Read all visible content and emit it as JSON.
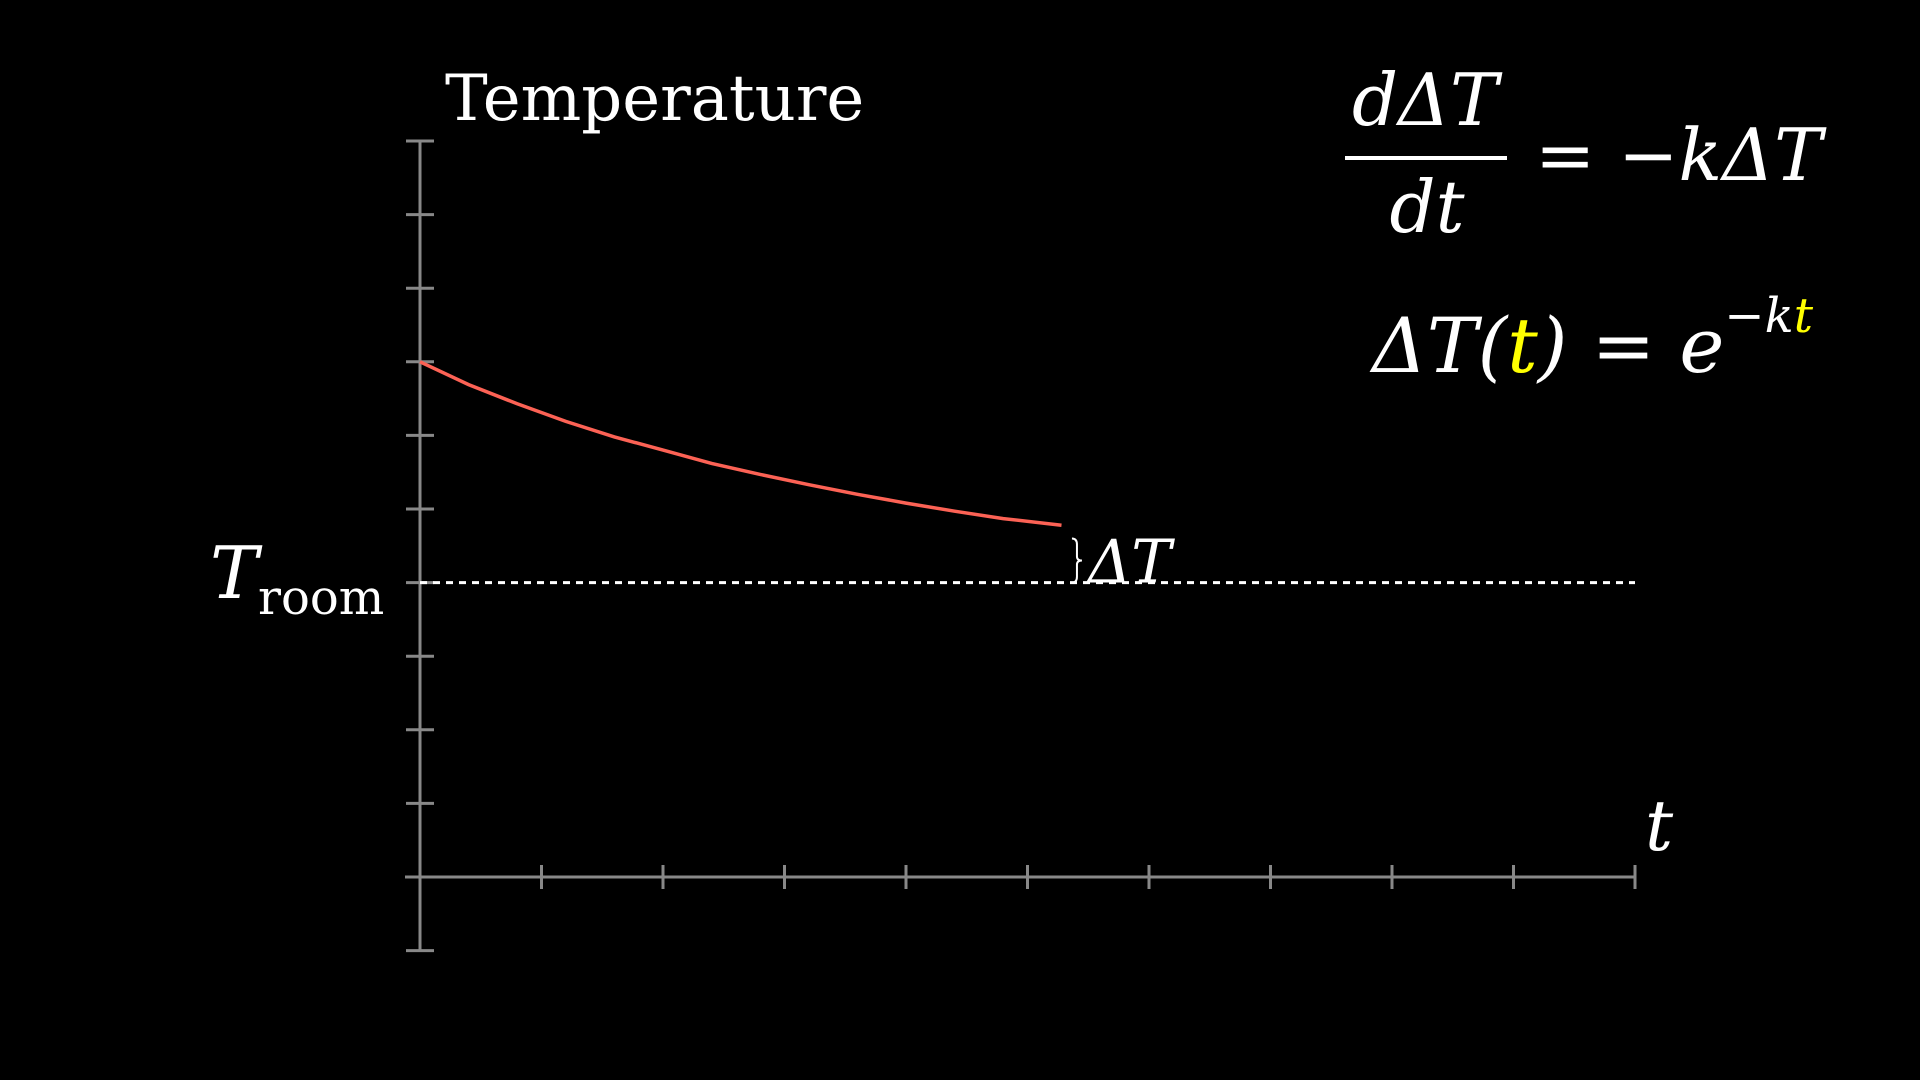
{
  "chart_data": {
    "type": "line",
    "title": "Temperature",
    "xlabel": "t",
    "ylabel": "Temperature",
    "x_ticks": [
      1,
      2,
      3,
      4,
      5,
      6,
      7,
      8,
      9,
      10
    ],
    "y_ticks": [
      -1,
      1,
      2,
      3,
      4,
      5,
      6,
      7,
      8,
      9,
      10
    ],
    "xlim": [
      0,
      10
    ],
    "ylim": [
      -1,
      10
    ],
    "grid": false,
    "reference_line": {
      "y": 4,
      "label_main": "T",
      "label_sub": "room",
      "style": "dotted"
    },
    "annotation": {
      "text": "ΔT",
      "x": 5.3,
      "y_top": 4.6,
      "y_bottom": 4
    },
    "series": [
      {
        "color": "#fc6255",
        "x": [
          0,
          0.4,
          0.8,
          1.2,
          1.6,
          2.0,
          2.4,
          2.8,
          3.2,
          3.6,
          4.0,
          4.4,
          4.8,
          5.28
        ],
        "y": [
          7,
          6.69,
          6.43,
          6.19,
          5.98,
          5.8,
          5.62,
          5.47,
          5.33,
          5.2,
          5.08,
          4.97,
          4.87,
          4.78
        ]
      }
    ]
  },
  "equations": {
    "ode_numerator": "dΔT",
    "ode_denominator": "dt",
    "ode_rhs": "= −kΔT",
    "solution_lhs": "ΔT(",
    "solution_t": "t",
    "solution_mid": ") = e",
    "solution_exp_k": "−k",
    "solution_exp_t": "t"
  },
  "colors": {
    "axis": "#888888",
    "text": "#ffffff",
    "curve": "#fc6255",
    "highlight": "#ffff00",
    "background": "#000000"
  }
}
